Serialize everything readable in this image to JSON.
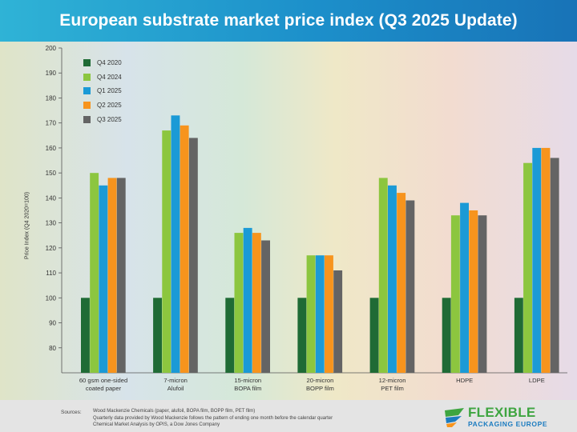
{
  "header": {
    "title": "European substrate market price index (Q3 2025 Update)"
  },
  "chart_data": {
    "type": "bar",
    "title": "European substrate market price index (Q3 2025 Update)",
    "xlabel": "",
    "ylabel": "Price Index (Q4 2020=100)",
    "ylim": [
      70,
      200
    ],
    "yticks": [
      80,
      90,
      100,
      110,
      120,
      130,
      140,
      150,
      160,
      170,
      180,
      190,
      200
    ],
    "grid": false,
    "legend": "top-left",
    "categories": [
      [
        "60 gsm one-sided",
        "coated paper"
      ],
      [
        "7-micron",
        "Alufoil"
      ],
      [
        "15-micron",
        "BOPA film"
      ],
      [
        "20-micron",
        "BOPP film"
      ],
      [
        "12-micron",
        "PET film"
      ],
      [
        "HDPE"
      ],
      [
        "LDPE"
      ]
    ],
    "series": [
      {
        "name": "Q4 2020",
        "color": "#1f6b35",
        "values": [
          100,
          100,
          100,
          100,
          100,
          100,
          100
        ]
      },
      {
        "name": "Q4 2024",
        "color": "#8cc63f",
        "values": [
          150,
          167,
          126,
          117,
          148,
          133,
          154
        ]
      },
      {
        "name": "Q1 2025",
        "color": "#1b9ad6",
        "values": [
          145,
          173,
          128,
          117,
          145,
          138,
          160
        ]
      },
      {
        "name": "Q2 2025",
        "color": "#f7941d",
        "values": [
          148,
          169,
          126,
          117,
          142,
          135,
          160
        ]
      },
      {
        "name": "Q3 2025",
        "color": "#646464",
        "values": [
          148,
          164,
          123,
          111,
          139,
          133,
          156
        ]
      }
    ]
  },
  "footer": {
    "sources_label": "Sources:",
    "sources_lines": [
      "Wood Mackenzie Chemicals (paper, alufoil, BOPA film, BOPP film, PET film)",
      "Quarterly data provided by Wood Mackenzie follows the pattern of ending one month before the calendar quarter",
      "Chemical Market Analysis by OPIS, a Dow Jones Company"
    ],
    "logo_line1": "FLEXIBLE",
    "logo_line2": "PACKAGING EUROPE",
    "logo_colors": [
      "#3ea540",
      "#1c7cc0",
      "#f7941d"
    ]
  }
}
